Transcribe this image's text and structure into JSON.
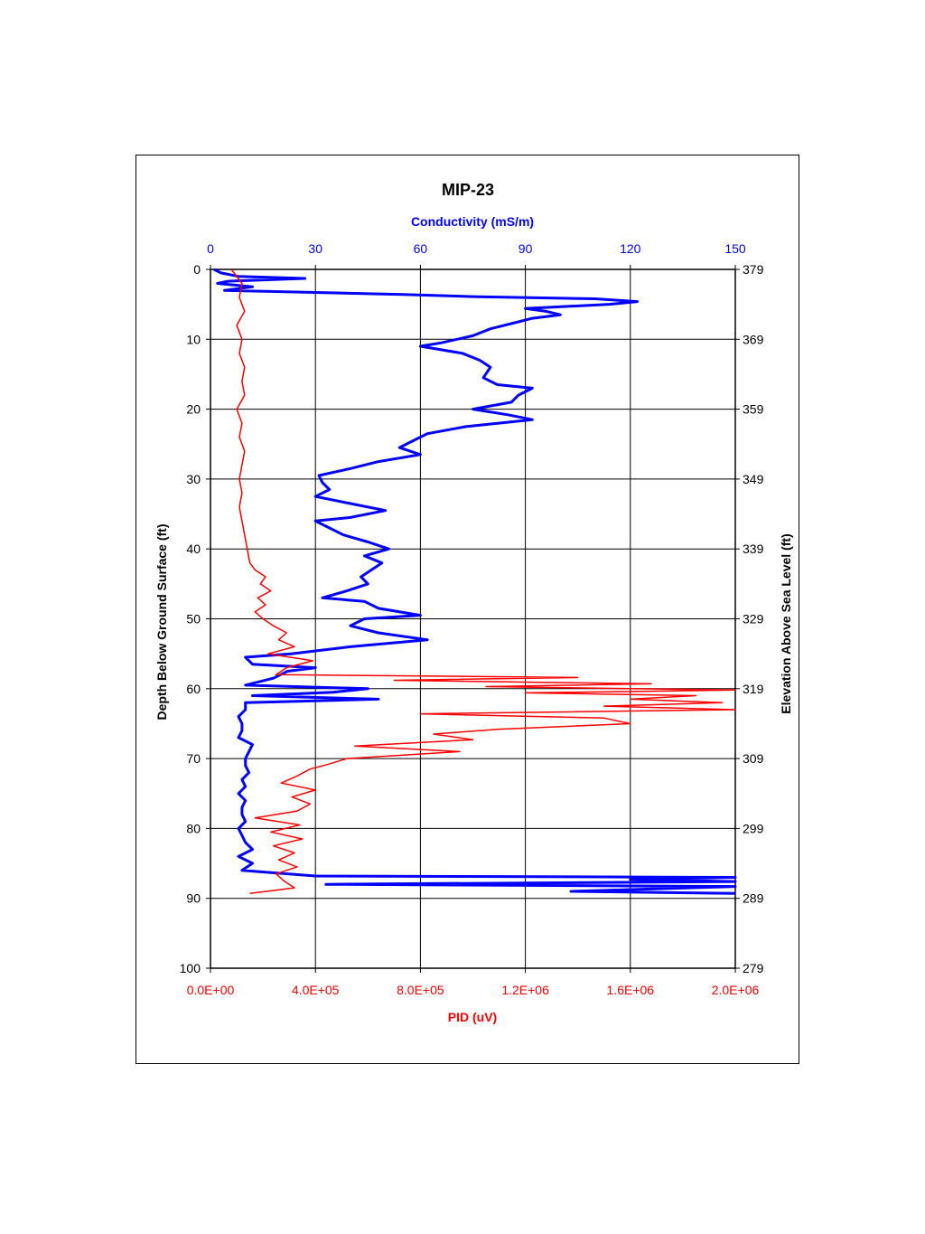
{
  "chart_data": {
    "type": "line",
    "title": "MIP-23",
    "orientation": "depth-profile",
    "depth_axis": {
      "label": "Depth Below Ground Surface (ft)",
      "range": [
        0,
        100
      ],
      "ticks": [
        "0",
        "10",
        "20",
        "30",
        "40",
        "50",
        "60",
        "70",
        "80",
        "90",
        "100"
      ],
      "inverted": true
    },
    "elevation_axis": {
      "label": "Elevation Above Sea Level (ft)",
      "range": [
        379,
        279
      ],
      "ticks": [
        "379",
        "369",
        "359",
        "349",
        "339",
        "329",
        "319",
        "309",
        "299",
        "289",
        "279"
      ]
    },
    "top_axis": {
      "label": "Conductivity (mS/m)",
      "range": [
        0,
        150
      ],
      "ticks": [
        "0",
        "30",
        "60",
        "90",
        "120",
        "150"
      ],
      "color": "#0000ff"
    },
    "bottom_axis": {
      "label": "PID (uV)",
      "range": [
        0,
        2000000
      ],
      "ticks": [
        "0.0E+00",
        "4.0E+05",
        "8.0E+05",
        "1.2E+06",
        "1.6E+06",
        "2.0E+06"
      ],
      "color": "#ff0000"
    },
    "grid": true,
    "series": [
      {
        "axis": "top",
        "color": "#0000ff",
        "points": [
          [
            0,
            1
          ],
          [
            0.5,
            3
          ],
          [
            1,
            8
          ],
          [
            1.3,
            27
          ],
          [
            1.7,
            5
          ],
          [
            2,
            2
          ],
          [
            2.5,
            12
          ],
          [
            3,
            4
          ],
          [
            3.3,
            30
          ],
          [
            3.6,
            55
          ],
          [
            3.9,
            75
          ],
          [
            4.2,
            110
          ],
          [
            4.6,
            122
          ],
          [
            5,
            114
          ],
          [
            5.6,
            90
          ],
          [
            6,
            96
          ],
          [
            6.5,
            100
          ],
          [
            7,
            92
          ],
          [
            7.5,
            88
          ],
          [
            8.5,
            80
          ],
          [
            9.5,
            75
          ],
          [
            10.5,
            66
          ],
          [
            11,
            60
          ],
          [
            12,
            72
          ],
          [
            13,
            77
          ],
          [
            14,
            80
          ],
          [
            15.5,
            78
          ],
          [
            16.5,
            82
          ],
          [
            17,
            92
          ],
          [
            18,
            88
          ],
          [
            19,
            86
          ],
          [
            20,
            75
          ],
          [
            20.8,
            85
          ],
          [
            21.5,
            92
          ],
          [
            22.5,
            73
          ],
          [
            23.5,
            62
          ],
          [
            24.5,
            58
          ],
          [
            25.5,
            54
          ],
          [
            26.5,
            60
          ],
          [
            27.5,
            48
          ],
          [
            28.5,
            40
          ],
          [
            29.5,
            31
          ],
          [
            30.5,
            32
          ],
          [
            31.5,
            34
          ],
          [
            32.5,
            30
          ],
          [
            33.5,
            40
          ],
          [
            34.5,
            50
          ],
          [
            35.5,
            40
          ],
          [
            36,
            30
          ],
          [
            37,
            34
          ],
          [
            38,
            38
          ],
          [
            39,
            45
          ],
          [
            40,
            51
          ],
          [
            41,
            44
          ],
          [
            42,
            49
          ],
          [
            43,
            46
          ],
          [
            44,
            43
          ],
          [
            45,
            45
          ],
          [
            46,
            39
          ],
          [
            47,
            32
          ],
          [
            47.5,
            44
          ],
          [
            48.5,
            48
          ],
          [
            49.5,
            60
          ],
          [
            50,
            44
          ],
          [
            51,
            40
          ],
          [
            52,
            48
          ],
          [
            53,
            62
          ],
          [
            54,
            40
          ],
          [
            55,
            23
          ],
          [
            55.5,
            10
          ],
          [
            56.5,
            12
          ],
          [
            57,
            30
          ],
          [
            57.5,
            22
          ],
          [
            58.5,
            18
          ],
          [
            59.5,
            10
          ],
          [
            60,
            45
          ],
          [
            60.5,
            35
          ],
          [
            61,
            12
          ],
          [
            61.5,
            48
          ],
          [
            62,
            10
          ],
          [
            63,
            10
          ],
          [
            64,
            8
          ],
          [
            65,
            9
          ],
          [
            66,
            9
          ],
          [
            67,
            8
          ],
          [
            68,
            12
          ],
          [
            69,
            11
          ],
          [
            70,
            10
          ],
          [
            71,
            10
          ],
          [
            72,
            11
          ],
          [
            73,
            9
          ],
          [
            74,
            10
          ],
          [
            75,
            8
          ],
          [
            76,
            10
          ],
          [
            77,
            9
          ],
          [
            78,
            9
          ],
          [
            79,
            10
          ],
          [
            80,
            8
          ],
          [
            81,
            9
          ],
          [
            82,
            10
          ],
          [
            83,
            12
          ],
          [
            84,
            8
          ],
          [
            85,
            12
          ],
          [
            86,
            9
          ],
          [
            86.8,
            30
          ],
          [
            87,
            150
          ],
          [
            87.3,
            120
          ],
          [
            87.6,
            150
          ],
          [
            88,
            33
          ],
          [
            88.3,
            150
          ],
          [
            89,
            103
          ],
          [
            89.3,
            150
          ]
        ]
      },
      {
        "axis": "bottom",
        "color": "#ff0000",
        "points": [
          [
            0,
            80000
          ],
          [
            2,
            120000
          ],
          [
            4,
            110000
          ],
          [
            6,
            130000
          ],
          [
            8,
            100000
          ],
          [
            10,
            120000
          ],
          [
            12,
            110000
          ],
          [
            14,
            130000
          ],
          [
            16,
            120000
          ],
          [
            18,
            130000
          ],
          [
            20,
            100000
          ],
          [
            22,
            120000
          ],
          [
            24,
            110000
          ],
          [
            26,
            130000
          ],
          [
            28,
            120000
          ],
          [
            30,
            110000
          ],
          [
            32,
            120000
          ],
          [
            34,
            110000
          ],
          [
            36,
            120000
          ],
          [
            38,
            130000
          ],
          [
            40,
            140000
          ],
          [
            42,
            150000
          ],
          [
            43,
            170000
          ],
          [
            44,
            210000
          ],
          [
            45,
            190000
          ],
          [
            46,
            230000
          ],
          [
            47,
            180000
          ],
          [
            48,
            210000
          ],
          [
            49,
            170000
          ],
          [
            50,
            200000
          ],
          [
            51,
            240000
          ],
          [
            52,
            290000
          ],
          [
            53,
            260000
          ],
          [
            54,
            320000
          ],
          [
            55,
            220000
          ],
          [
            56,
            390000
          ],
          [
            57,
            290000
          ],
          [
            58,
            250000
          ],
          [
            58.4,
            1400000
          ],
          [
            58.8,
            700000
          ],
          [
            59.3,
            1680000
          ],
          [
            59.7,
            1050000
          ],
          [
            60.2,
            2000000
          ],
          [
            60.6,
            1200000
          ],
          [
            61,
            1850000
          ],
          [
            61.5,
            1600000
          ],
          [
            62,
            1950000
          ],
          [
            62.5,
            1500000
          ],
          [
            63,
            2000000
          ],
          [
            63.6,
            800000
          ],
          [
            64.2,
            1500000
          ],
          [
            65,
            1600000
          ],
          [
            65.8,
            1100000
          ],
          [
            66.5,
            850000
          ],
          [
            67.3,
            1000000
          ],
          [
            68.2,
            550000
          ],
          [
            69,
            950000
          ],
          [
            70,
            520000
          ],
          [
            70.8,
            450000
          ],
          [
            71.5,
            380000
          ],
          [
            72.5,
            330000
          ],
          [
            73.5,
            270000
          ],
          [
            74.5,
            400000
          ],
          [
            75.5,
            310000
          ],
          [
            76.5,
            380000
          ],
          [
            77.5,
            330000
          ],
          [
            78.5,
            170000
          ],
          [
            79.5,
            340000
          ],
          [
            80.5,
            230000
          ],
          [
            81.5,
            350000
          ],
          [
            82.5,
            240000
          ],
          [
            83.5,
            320000
          ],
          [
            84.5,
            260000
          ],
          [
            85.5,
            330000
          ],
          [
            86.5,
            250000
          ],
          [
            87.5,
            280000
          ],
          [
            88.5,
            320000
          ],
          [
            89.3,
            150000
          ]
        ]
      }
    ]
  }
}
